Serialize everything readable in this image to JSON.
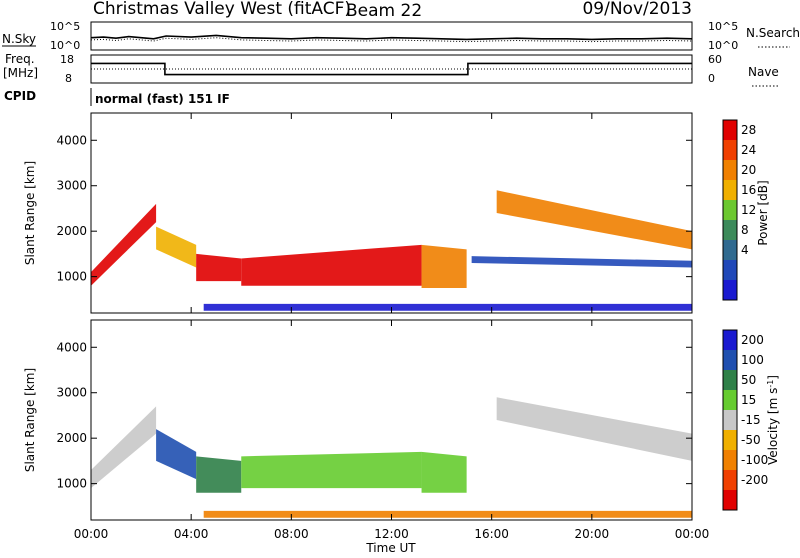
{
  "header": {
    "title": "Christmas Valley West (fitACF)",
    "beam": "Beam 22",
    "date": "09/Nov/2013"
  },
  "noise_panel": {
    "left_label": "N.Sky",
    "right_label": "N.Search",
    "left_ticks": [
      "10^5",
      "10^0"
    ],
    "right_ticks": [
      "10^5",
      "10^0"
    ]
  },
  "freq_panel": {
    "left_label_1": "Freq.",
    "left_label_2": "[MHz]",
    "left_ticks": [
      "18",
      "8"
    ],
    "right_ticks": [
      "60",
      "0"
    ],
    "right_label": "Nave"
  },
  "cpid_panel": {
    "label": "CPID",
    "program": "normal (fast) 151 IF"
  },
  "time_axis": {
    "label": "Time UT",
    "ticks": [
      "00:00",
      "04:00",
      "08:00",
      "12:00",
      "16:00",
      "20:00",
      "00:00"
    ]
  },
  "colors": {
    "power": [
      "#1a1ad0",
      "#2048b8",
      "#306a90",
      "#3c8a5a",
      "#6cc830",
      "#f0b000",
      "#f08000",
      "#f04000",
      "#e00000"
    ],
    "velocity": [
      "#1a1ad0",
      "#2050b0",
      "#2f8048",
      "#66cc30",
      "#c8c8c8",
      "#f0b000",
      "#f08000",
      "#f04000",
      "#e00000"
    ]
  },
  "chart_data": [
    {
      "type": "line",
      "panel": "noise",
      "x_range_hours": [
        0,
        24
      ],
      "series": [
        {
          "name": "N.Sky",
          "x": [
            0,
            0.5,
            1,
            1.5,
            2,
            2.5,
            3,
            4,
            5,
            6,
            7,
            8,
            9,
            10,
            11,
            12,
            13,
            14,
            15,
            16,
            17,
            18,
            19,
            20,
            21,
            22,
            23,
            24
          ],
          "y_log10": [
            2.2,
            2.3,
            2.1,
            2.4,
            2.2,
            2.0,
            2.5,
            2.3,
            2.6,
            2.2,
            2.1,
            2.0,
            2.2,
            2.1,
            2.0,
            2.2,
            2.1,
            2.0,
            1.9,
            2.0,
            2.1,
            2.0,
            2.0,
            1.9,
            2.0,
            2.0,
            2.1,
            2.0
          ]
        }
      ]
    },
    {
      "type": "line",
      "panel": "frequency",
      "x_range_hours": [
        0,
        24
      ],
      "ylim": [
        8,
        18
      ],
      "series": [
        {
          "name": "Freq.",
          "x": [
            0,
            2.95,
            2.95,
            15.05,
            15.05,
            24
          ],
          "y": [
            15,
            15,
            11,
            11,
            15,
            15
          ]
        }
      ]
    },
    {
      "type": "heatmap",
      "panel": "power",
      "ylabel": "Slant Range [km]",
      "ylim": [
        200,
        4600
      ],
      "yticks": [
        1000,
        2000,
        3000,
        4000
      ],
      "colorbar_label": "Power [dB]",
      "colorbar_ticks": [
        4,
        8,
        12,
        16,
        20,
        24,
        28
      ],
      "bands": [
        {
          "t0": 0.0,
          "t1": 2.6,
          "r0_start": 800,
          "r0_end": 2200,
          "r1_start": 1100,
          "r1_end": 2600,
          "level": 8
        },
        {
          "t0": 2.6,
          "t1": 4.2,
          "r0_start": 1600,
          "r0_end": 1200,
          "r1_start": 2100,
          "r1_end": 1700,
          "level": 5
        },
        {
          "t0": 4.2,
          "t1": 6.0,
          "r0_start": 900,
          "r0_end": 900,
          "r1_start": 1500,
          "r1_end": 1400,
          "level": 8
        },
        {
          "t0": 6.0,
          "t1": 13.2,
          "r0_start": 800,
          "r0_end": 800,
          "r1_start": 1400,
          "r1_end": 1700,
          "level": 8
        },
        {
          "t0": 13.2,
          "t1": 15.0,
          "r0_start": 750,
          "r0_end": 750,
          "r1_start": 1700,
          "r1_end": 1600,
          "level": 6
        },
        {
          "t0": 16.2,
          "t1": 24.0,
          "r0_start": 2400,
          "r0_end": 1600,
          "r1_start": 2900,
          "r1_end": 2000,
          "level": 6
        },
        {
          "t0": 15.2,
          "t1": 24.0,
          "r0_start": 1300,
          "r0_end": 1200,
          "r1_start": 1450,
          "r1_end": 1350,
          "level": 1
        },
        {
          "t0": 4.5,
          "t1": 24.0,
          "r0_start": 250,
          "r0_end": 250,
          "r1_start": 400,
          "r1_end": 400,
          "level": 0
        }
      ]
    },
    {
      "type": "heatmap",
      "panel": "velocity",
      "ylabel": "Slant Range [km]",
      "ylim": [
        200,
        4600
      ],
      "yticks": [
        1000,
        2000,
        3000,
        4000
      ],
      "colorbar_label": "Velocity [m s^-1]",
      "colorbar_ticks": [
        200,
        100,
        50,
        15,
        -15,
        -50,
        -100,
        -200
      ],
      "bands": [
        {
          "t0": 0.0,
          "t1": 2.6,
          "r0_start": 900,
          "r0_end": 2100,
          "r1_start": 1300,
          "r1_end": 2700,
          "level": 4
        },
        {
          "t0": 2.6,
          "t1": 4.2,
          "r0_start": 1500,
          "r0_end": 1100,
          "r1_start": 2200,
          "r1_end": 1700,
          "level": 1
        },
        {
          "t0": 4.2,
          "t1": 6.0,
          "r0_start": 800,
          "r0_end": 800,
          "r1_start": 1600,
          "r1_end": 1500,
          "level": 2
        },
        {
          "t0": 6.0,
          "t1": 13.2,
          "r0_start": 900,
          "r0_end": 900,
          "r1_start": 1600,
          "r1_end": 1700,
          "level": 3
        },
        {
          "t0": 13.2,
          "t1": 15.0,
          "r0_start": 800,
          "r0_end": 800,
          "r1_start": 1700,
          "r1_end": 1600,
          "level": 3
        },
        {
          "t0": 16.2,
          "t1": 24.0,
          "r0_start": 2400,
          "r0_end": 1500,
          "r1_start": 2900,
          "r1_end": 2100,
          "level": 4
        },
        {
          "t0": 4.5,
          "t1": 24.0,
          "r0_start": 250,
          "r0_end": 250,
          "r1_start": 400,
          "r1_end": 400,
          "level": 6
        }
      ]
    }
  ]
}
